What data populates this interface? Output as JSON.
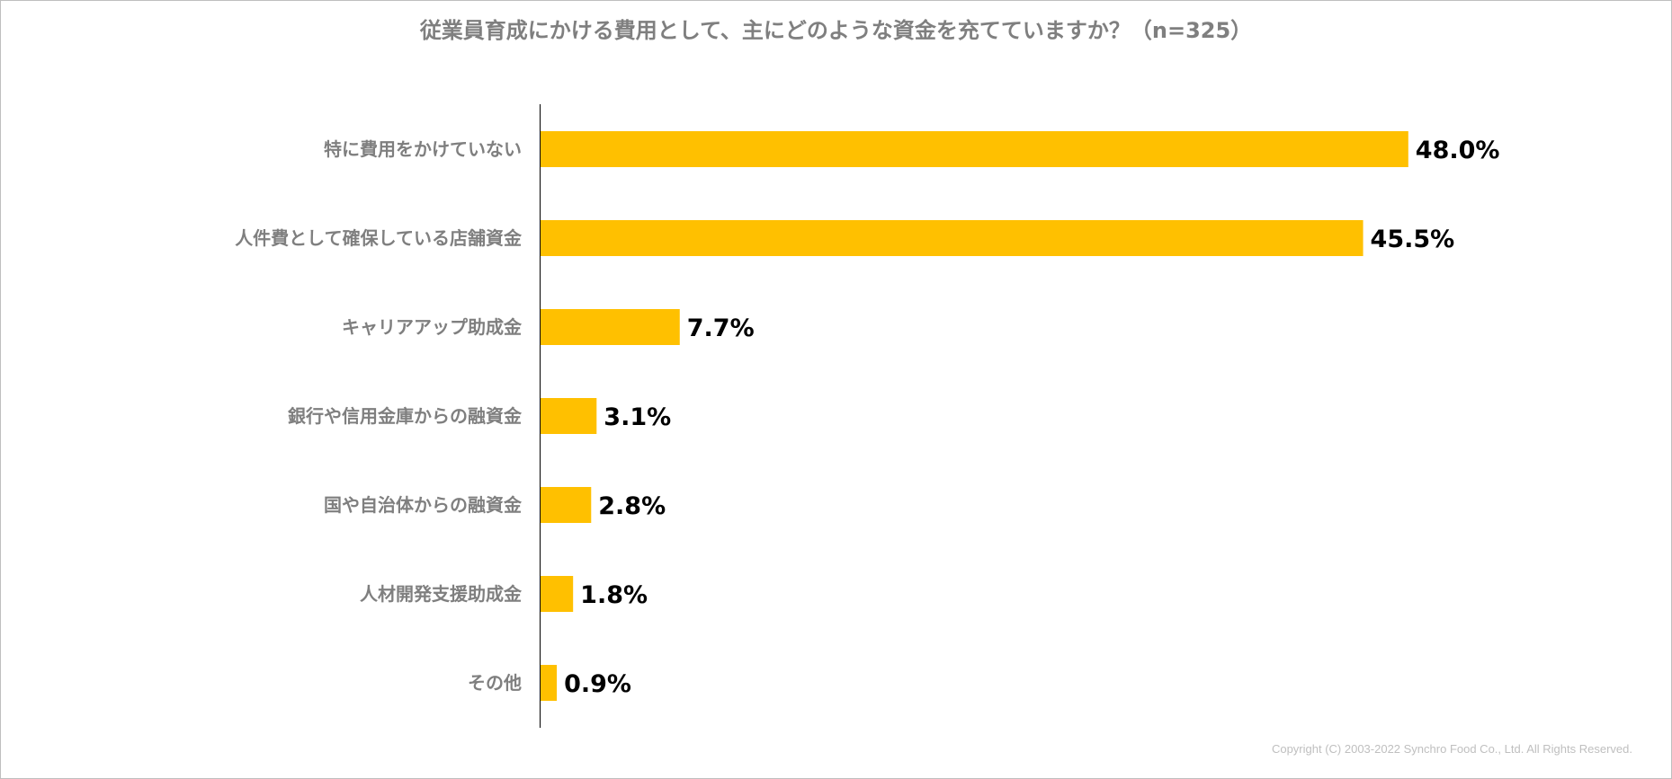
{
  "chart_data": {
    "type": "bar",
    "orientation": "horizontal",
    "title": "従業員育成にかける費用として、主にどのような資金を充てていますか？（n=325）",
    "categories": [
      "特に費用をかけていない",
      "人件費として確保している店舗資金",
      "キャリアアップ助成金",
      "銀行や信用金庫からの融資金",
      "国や自治体からの融資金",
      "人材開発支援助成金",
      "その他"
    ],
    "values": [
      48.0,
      45.5,
      7.7,
      3.1,
      2.8,
      1.8,
      0.9
    ],
    "value_labels": [
      "48.0%",
      "45.5%",
      "7.7%",
      "3.1%",
      "2.8%",
      "1.8%",
      "0.9%"
    ],
    "xlim": [
      0,
      50
    ],
    "grid": false,
    "bar_color": "#FFC000"
  },
  "footer": {
    "copyright": "Copyright (C) 2003-2022   Synchro Food Co., Ltd. All Rights Reserved."
  }
}
